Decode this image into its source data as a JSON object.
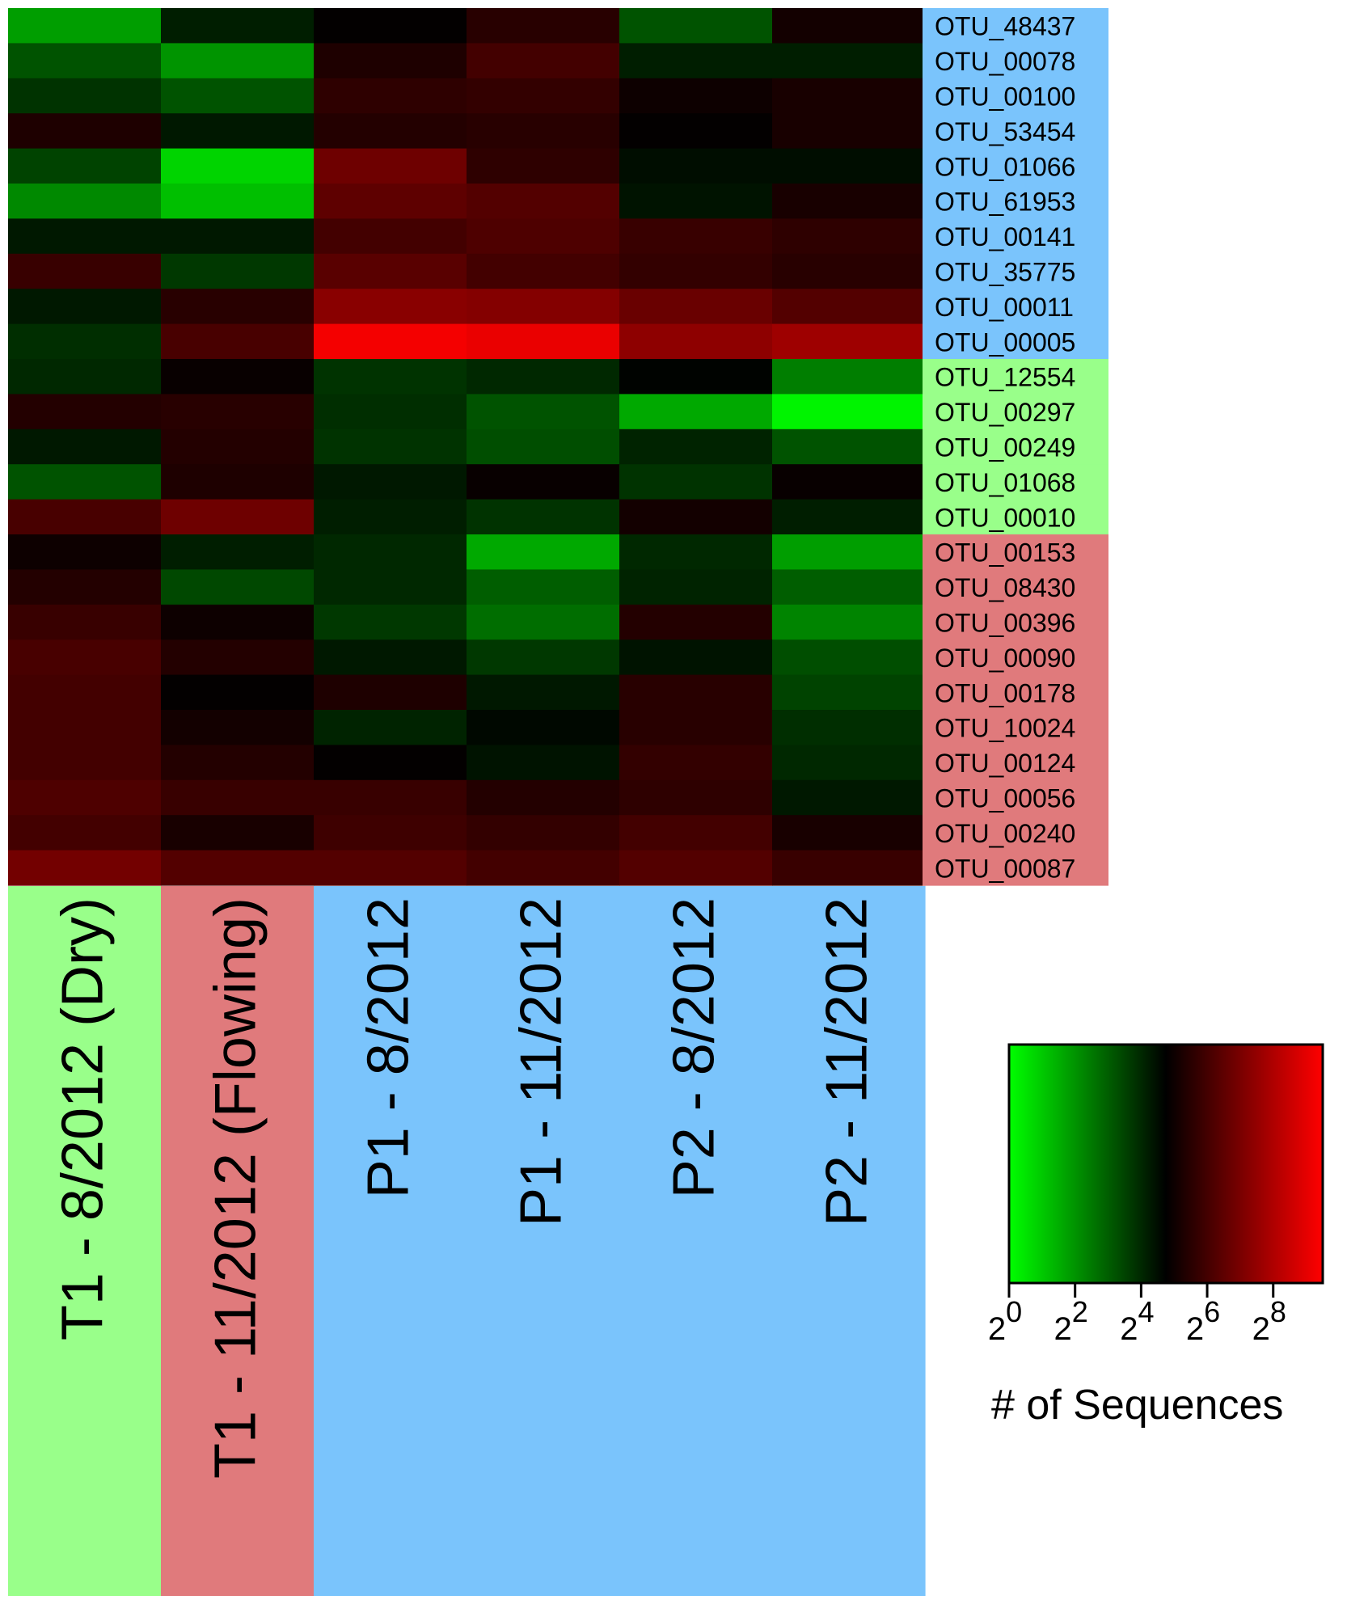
{
  "chart_data": {
    "type": "heatmap",
    "title": "",
    "color_scale": {
      "low": "#00ff00",
      "mid": "#000000",
      "high": "#ff0000",
      "domain_log2": [
        0,
        9.5
      ],
      "mid_log2": 4.75,
      "ticks": [
        {
          "base": "2",
          "exp": "0"
        },
        {
          "base": "2",
          "exp": "2"
        },
        {
          "base": "2",
          "exp": "4"
        },
        {
          "base": "2",
          "exp": "6"
        },
        {
          "base": "2",
          "exp": "8"
        }
      ],
      "label": "# of Sequences"
    },
    "columns": [
      {
        "label": "T1 - 8/2012 (Dry)",
        "group_color": "#99ff8a"
      },
      {
        "label": "T1 - 11/2012 (Flowing)",
        "group_color": "#e07a7c"
      },
      {
        "label": "P1 - 8/2012",
        "group_color": "#7ac4fc"
      },
      {
        "label": "P1 - 11/2012",
        "group_color": "#7ac4fc"
      },
      {
        "label": "P2 - 8/2012",
        "group_color": "#7ac4fc"
      },
      {
        "label": "P2 - 11/2012",
        "group_color": "#7ac4fc"
      }
    ],
    "rows": [
      {
        "label": "OTU_48437",
        "group_color": "#7ac4fc",
        "values_log2": [
          1.8,
          4.2,
          4.8,
          5.5,
          3.2,
          5.1
        ]
      },
      {
        "label": "OTU_00078",
        "group_color": "#7ac4fc",
        "values_log2": [
          3.2,
          2.0,
          5.3,
          6.0,
          4.2,
          4.2
        ]
      },
      {
        "label": "OTU_00100",
        "group_color": "#7ac4fc",
        "values_log2": [
          3.8,
          3.2,
          5.6,
          5.7,
          5.0,
          5.2
        ]
      },
      {
        "label": "OTU_53454",
        "group_color": "#7ac4fc",
        "values_log2": [
          5.3,
          4.3,
          5.4,
          5.5,
          4.8,
          5.2
        ]
      },
      {
        "label": "OTU_01066",
        "group_color": "#7ac4fc",
        "values_log2": [
          3.5,
          0.8,
          6.8,
          5.6,
          4.5,
          4.5
        ]
      },
      {
        "label": "OTU_61953",
        "group_color": "#7ac4fc",
        "values_log2": [
          2.2,
          1.2,
          6.5,
          6.3,
          4.4,
          5.2
        ]
      },
      {
        "label": "OTU_00141",
        "group_color": "#7ac4fc",
        "values_log2": [
          4.3,
          4.3,
          6.0,
          6.2,
          5.8,
          5.6
        ]
      },
      {
        "label": "OTU_35775",
        "group_color": "#7ac4fc",
        "values_log2": [
          5.8,
          3.7,
          6.4,
          6.0,
          5.7,
          5.5
        ]
      },
      {
        "label": "OTU_00011",
        "group_color": "#7ac4fc",
        "values_log2": [
          4.3,
          5.5,
          7.3,
          7.2,
          6.7,
          6.3
        ]
      },
      {
        "label": "OTU_00005",
        "group_color": "#7ac4fc",
        "values_log2": [
          3.9,
          6.1,
          9.3,
          9.1,
          7.4,
          7.7
        ]
      },
      {
        "label": "OTU_12554",
        "group_color": "#99ff8a",
        "values_log2": [
          4.0,
          4.9,
          3.8,
          4.0,
          4.7,
          2.4
        ]
      },
      {
        "label": "OTU_00297",
        "group_color": "#99ff8a",
        "values_log2": [
          5.4,
          5.5,
          3.9,
          3.2,
          1.6,
          0.2
        ]
      },
      {
        "label": "OTU_00249",
        "group_color": "#99ff8a",
        "values_log2": [
          4.3,
          5.4,
          3.8,
          3.3,
          4.1,
          3.2
        ]
      },
      {
        "label": "OTU_01068",
        "group_color": "#99ff8a",
        "values_log2": [
          3.2,
          5.3,
          4.3,
          4.9,
          3.8,
          4.9
        ]
      },
      {
        "label": "OTU_00010",
        "group_color": "#99ff8a",
        "values_log2": [
          6.1,
          6.8,
          4.2,
          3.8,
          5.1,
          4.2
        ]
      },
      {
        "label": "OTU_00153",
        "group_color": "#e07a7c",
        "values_log2": [
          5.0,
          4.2,
          4.0,
          1.6,
          4.0,
          1.8
        ]
      },
      {
        "label": "OTU_08430",
        "group_color": "#e07a7c",
        "values_log2": [
          5.4,
          3.4,
          4.0,
          3.0,
          4.1,
          3.0
        ]
      },
      {
        "label": "OTU_00396",
        "group_color": "#e07a7c",
        "values_log2": [
          5.8,
          5.0,
          3.7,
          2.7,
          5.4,
          2.3
        ]
      },
      {
        "label": "OTU_00090",
        "group_color": "#e07a7c",
        "values_log2": [
          6.1,
          5.4,
          4.3,
          3.7,
          4.4,
          3.3
        ]
      },
      {
        "label": "OTU_00178",
        "group_color": "#e07a7c",
        "values_log2": [
          6.0,
          4.8,
          5.3,
          4.3,
          5.5,
          3.5
        ]
      },
      {
        "label": "OTU_10024",
        "group_color": "#e07a7c",
        "values_log2": [
          6.0,
          5.1,
          4.1,
          4.6,
          5.5,
          3.9
        ]
      },
      {
        "label": "OTU_00124",
        "group_color": "#e07a7c",
        "values_log2": [
          6.0,
          5.4,
          4.8,
          4.4,
          5.7,
          4.0
        ]
      },
      {
        "label": "OTU_00056",
        "group_color": "#e07a7c",
        "values_log2": [
          6.2,
          5.8,
          5.8,
          5.4,
          5.6,
          4.3
        ]
      },
      {
        "label": "OTU_00240",
        "group_color": "#e07a7c",
        "values_log2": [
          6.0,
          5.2,
          5.9,
          5.7,
          6.0,
          5.2
        ]
      },
      {
        "label": "OTU_00087",
        "group_color": "#e07a7c",
        "values_log2": [
          6.9,
          6.3,
          6.3,
          6.0,
          6.3,
          5.8
        ]
      }
    ]
  }
}
